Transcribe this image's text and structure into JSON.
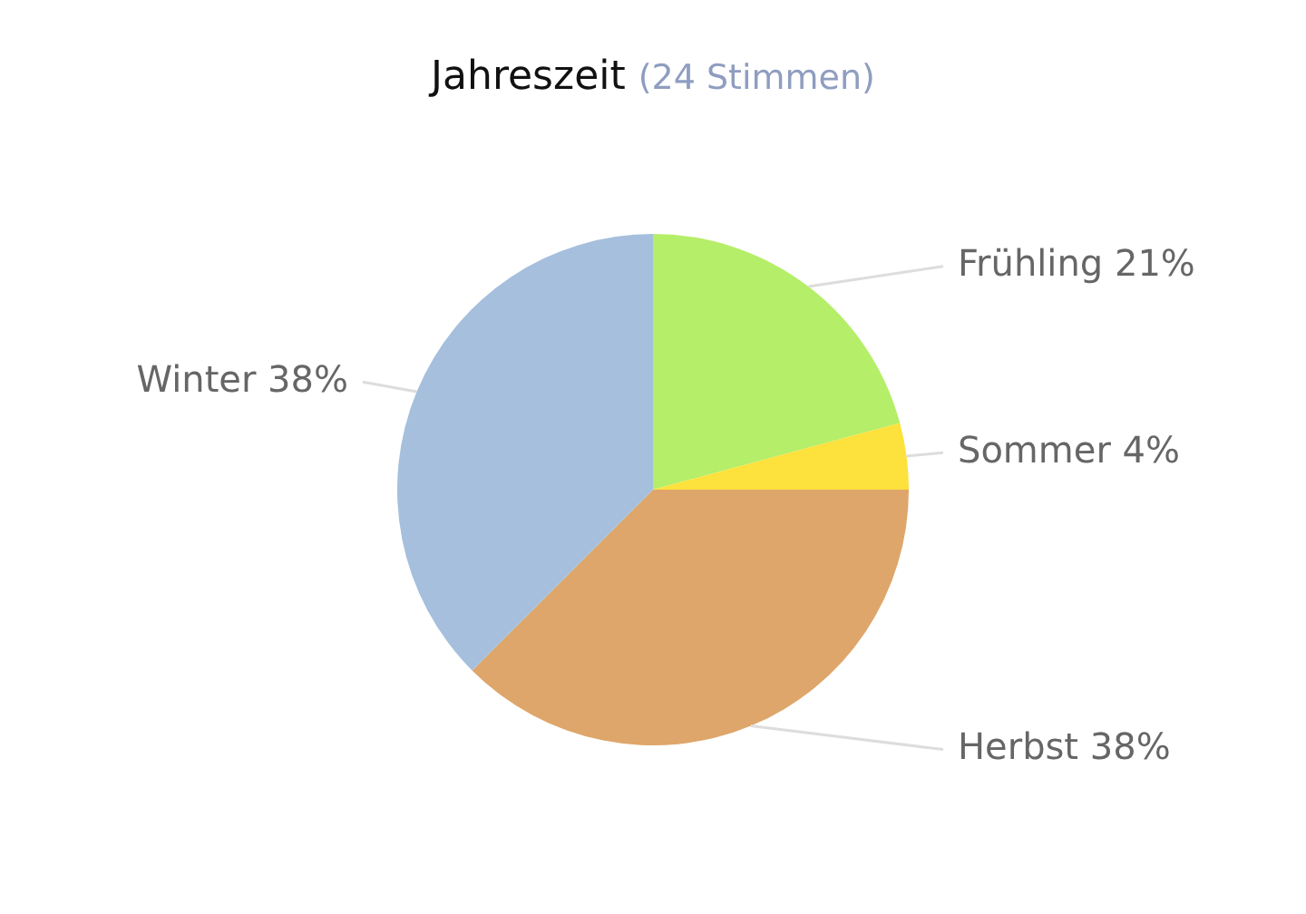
{
  "chart_data": {
    "type": "pie",
    "title": "Jahreszeit",
    "subtitle": "(24 Stimmen)",
    "categories": [
      "Frühling",
      "Sommer",
      "Herbst",
      "Winter"
    ],
    "values": [
      20.8,
      4.2,
      37.5,
      37.5
    ],
    "value_labels": [
      "21%",
      "4%",
      "38%",
      "38%"
    ],
    "colors": [
      "#b5ee68",
      "#fde13c",
      "#dea66a",
      "#a5bfdd"
    ],
    "legend": false
  }
}
